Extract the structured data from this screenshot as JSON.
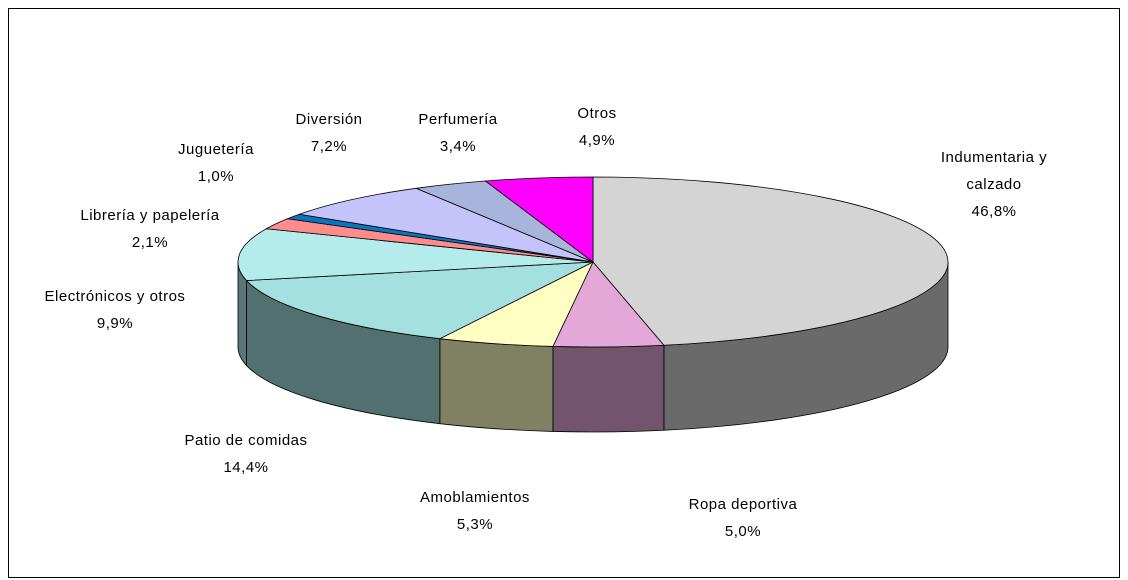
{
  "chart_data": {
    "type": "pie",
    "categories": [
      "Indumentaria y calzado",
      "Ropa deportiva",
      "Amoblamientos",
      "Patio de comidas",
      "Electrónicos y otros",
      "Librería y papelería",
      "Juguetería",
      "Diversión",
      "Perfumería",
      "Otros"
    ],
    "values": [
      46.8,
      5.0,
      5.3,
      14.4,
      9.9,
      2.1,
      1.0,
      7.2,
      3.4,
      4.9
    ],
    "value_labels": [
      "46,8%",
      "5,0%",
      "5,3%",
      "14,4%",
      "9,9%",
      "2,1%",
      "1,0%",
      "7,2%",
      "3,4%",
      "4,9%"
    ],
    "colors": [
      "#d4d4d4",
      "#e4a8d8",
      "#ffffc4",
      "#a4e0e0",
      "#b4ecec",
      "#ff8c8c",
      "#0a74bc",
      "#c4c4fa",
      "#a8b4dc",
      "#ff00ff"
    ]
  }
}
